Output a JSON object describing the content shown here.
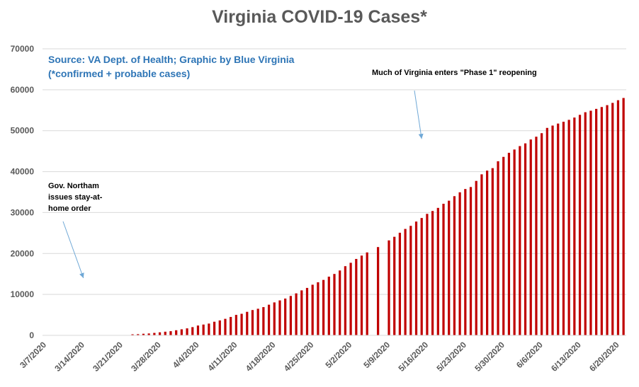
{
  "chart_data": {
    "type": "bar",
    "title": "Virginia COVID-19 Cases*",
    "source_lines": [
      "Source: VA Dept. of Health; Graphic by Blue Virginia",
      "(*confirmed + probable cases)"
    ],
    "ylim": [
      0,
      70000
    ],
    "yticks": [
      0,
      10000,
      20000,
      30000,
      40000,
      50000,
      60000,
      70000
    ],
    "grid": true,
    "xtick_labels": [
      "3/7/2020",
      "3/14/2020",
      "3/21/2020",
      "3/28/2020",
      "4/4/2020",
      "4/11/2020",
      "4/18/2020",
      "4/25/2020",
      "5/2/2020",
      "5/9/2020",
      "5/16/2020",
      "5/23/2020",
      "5/30/2020",
      "6/6/2020",
      "6/13/2020",
      "6/20/2020"
    ],
    "start_date": "2020-03-07",
    "end_date": "2020-06-22",
    "points": [
      [
        "2020-03-07",
        0
      ],
      [
        "2020-03-08",
        0
      ],
      [
        "2020-03-09",
        0
      ],
      [
        "2020-03-10",
        0
      ],
      [
        "2020-03-11",
        0
      ],
      [
        "2020-03-12",
        0
      ],
      [
        "2020-03-13",
        0
      ],
      [
        "2020-03-14",
        0
      ],
      [
        "2020-03-15",
        0
      ],
      [
        "2020-03-16",
        0
      ],
      [
        "2020-03-17",
        0
      ],
      [
        "2020-03-18",
        0
      ],
      [
        "2020-03-19",
        0
      ],
      [
        "2020-03-20",
        0
      ],
      [
        "2020-03-21",
        0
      ],
      [
        "2020-03-22",
        0
      ],
      [
        "2020-03-23",
        250
      ],
      [
        "2020-03-24",
        290
      ],
      [
        "2020-03-25",
        390
      ],
      [
        "2020-03-26",
        460
      ],
      [
        "2020-03-27",
        600
      ],
      [
        "2020-03-28",
        740
      ],
      [
        "2020-03-29",
        890
      ],
      [
        "2020-03-30",
        1020
      ],
      [
        "2020-03-31",
        1250
      ],
      [
        "2020-04-01",
        1480
      ],
      [
        "2020-04-02",
        1710
      ],
      [
        "2020-04-03",
        2010
      ],
      [
        "2020-04-04",
        2400
      ],
      [
        "2020-04-05",
        2640
      ],
      [
        "2020-04-06",
        2880
      ],
      [
        "2020-04-07",
        3330
      ],
      [
        "2020-04-08",
        3650
      ],
      [
        "2020-04-09",
        4040
      ],
      [
        "2020-04-10",
        4500
      ],
      [
        "2020-04-11",
        5000
      ],
      [
        "2020-04-12",
        5270
      ],
      [
        "2020-04-13",
        5750
      ],
      [
        "2020-04-14",
        6180
      ],
      [
        "2020-04-15",
        6500
      ],
      [
        "2020-04-16",
        6900
      ],
      [
        "2020-04-17",
        7490
      ],
      [
        "2020-04-18",
        8050
      ],
      [
        "2020-04-19",
        8540
      ],
      [
        "2020-04-20",
        8990
      ],
      [
        "2020-04-21",
        9630
      ],
      [
        "2020-04-22",
        10260
      ],
      [
        "2020-04-23",
        10990
      ],
      [
        "2020-04-24",
        11590
      ],
      [
        "2020-04-25",
        12370
      ],
      [
        "2020-04-26",
        12970
      ],
      [
        "2020-04-27",
        13540
      ],
      [
        "2020-04-28",
        14340
      ],
      [
        "2020-04-29",
        15000
      ],
      [
        "2020-04-30",
        15850
      ],
      [
        "2020-05-01",
        16900
      ],
      [
        "2020-05-02",
        17730
      ],
      [
        "2020-05-03",
        18670
      ],
      [
        "2020-05-04",
        19490
      ],
      [
        "2020-05-05",
        20260
      ],
      [
        "2020-05-07",
        21570
      ],
      [
        "2020-05-09",
        23200
      ],
      [
        "2020-05-10",
        24080
      ],
      [
        "2020-05-11",
        25070
      ],
      [
        "2020-05-12",
        26000
      ],
      [
        "2020-05-13",
        26750
      ],
      [
        "2020-05-14",
        27800
      ],
      [
        "2020-05-15",
        28670
      ],
      [
        "2020-05-16",
        29680
      ],
      [
        "2020-05-17",
        30380
      ],
      [
        "2020-05-18",
        31140
      ],
      [
        "2020-05-19",
        32150
      ],
      [
        "2020-05-20",
        32900
      ],
      [
        "2020-05-21",
        34000
      ],
      [
        "2020-05-22",
        34950
      ],
      [
        "2020-05-23",
        35750
      ],
      [
        "2020-05-24",
        36240
      ],
      [
        "2020-05-25",
        37730
      ],
      [
        "2020-05-26",
        39340
      ],
      [
        "2020-05-27",
        40250
      ],
      [
        "2020-05-28",
        40850
      ],
      [
        "2020-05-29",
        42530
      ],
      [
        "2020-05-30",
        43600
      ],
      [
        "2020-05-31",
        44600
      ],
      [
        "2020-06-01",
        45400
      ],
      [
        "2020-06-02",
        46240
      ],
      [
        "2020-06-03",
        46900
      ],
      [
        "2020-06-04",
        47850
      ],
      [
        "2020-06-05",
        48530
      ],
      [
        "2020-06-06",
        49390
      ],
      [
        "2020-06-07",
        50680
      ],
      [
        "2020-06-08",
        51250
      ],
      [
        "2020-06-09",
        51740
      ],
      [
        "2020-06-10",
        52180
      ],
      [
        "2020-06-11",
        52650
      ],
      [
        "2020-06-12",
        53210
      ],
      [
        "2020-06-13",
        53870
      ],
      [
        "2020-06-14",
        54510
      ],
      [
        "2020-06-15",
        54880
      ],
      [
        "2020-06-16",
        55330
      ],
      [
        "2020-06-17",
        55780
      ],
      [
        "2020-06-18",
        56240
      ],
      [
        "2020-06-19",
        56790
      ],
      [
        "2020-06-20",
        57440
      ],
      [
        "2020-06-21",
        57990
      ]
    ],
    "annotations": [
      {
        "text_lines": [
          "Much of Virginia enters \"Phase 1\" reopening"
        ],
        "date": "2020-05-15",
        "value": 48000
      },
      {
        "text_lines": [
          "Gov. Northam",
          "issues stay-at-",
          "home order"
        ],
        "date": "2020-03-14",
        "value": 14000
      }
    ],
    "colors": {
      "bars": "#c00000",
      "title": "#595959",
      "source": "#2e75b6",
      "arrow": "#6fa8d6",
      "grid": "#d9d9d9"
    }
  }
}
